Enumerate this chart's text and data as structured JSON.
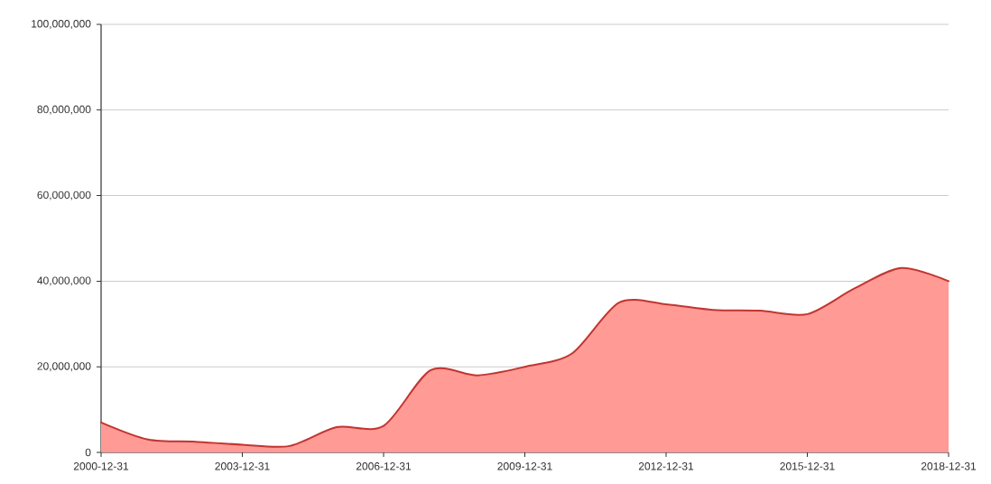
{
  "chart_data": {
    "type": "area",
    "categories": [
      "2000-12-31",
      null,
      null,
      "2003-12-31",
      null,
      null,
      "2006-12-31",
      null,
      null,
      "2009-12-31",
      null,
      null,
      "2012-12-31",
      null,
      null,
      "2015-12-31",
      null,
      null,
      "2018-12-31"
    ],
    "values": [
      7000000,
      3000000,
      2500000,
      1800000,
      1500000,
      5900000,
      6200000,
      19200000,
      18000000,
      20000000,
      23100000,
      35000000,
      34600000,
      33300000,
      33100000,
      32300000,
      38300000,
      43100000,
      40000000
    ],
    "color": "#c23531",
    "ylim": [
      0,
      100000000
    ],
    "yticks": [
      0,
      {
        "value": 20000000,
        "label": "20,000,000"
      },
      {
        "value": 40000000,
        "label": "40,000,000"
      },
      {
        "value": 60000000,
        "label": "60,000,000"
      },
      {
        "value": 80000000,
        "label": "80,000,000"
      },
      {
        "value": 100000000,
        "label": "100,000,000"
      }
    ],
    "grid": "y"
  }
}
